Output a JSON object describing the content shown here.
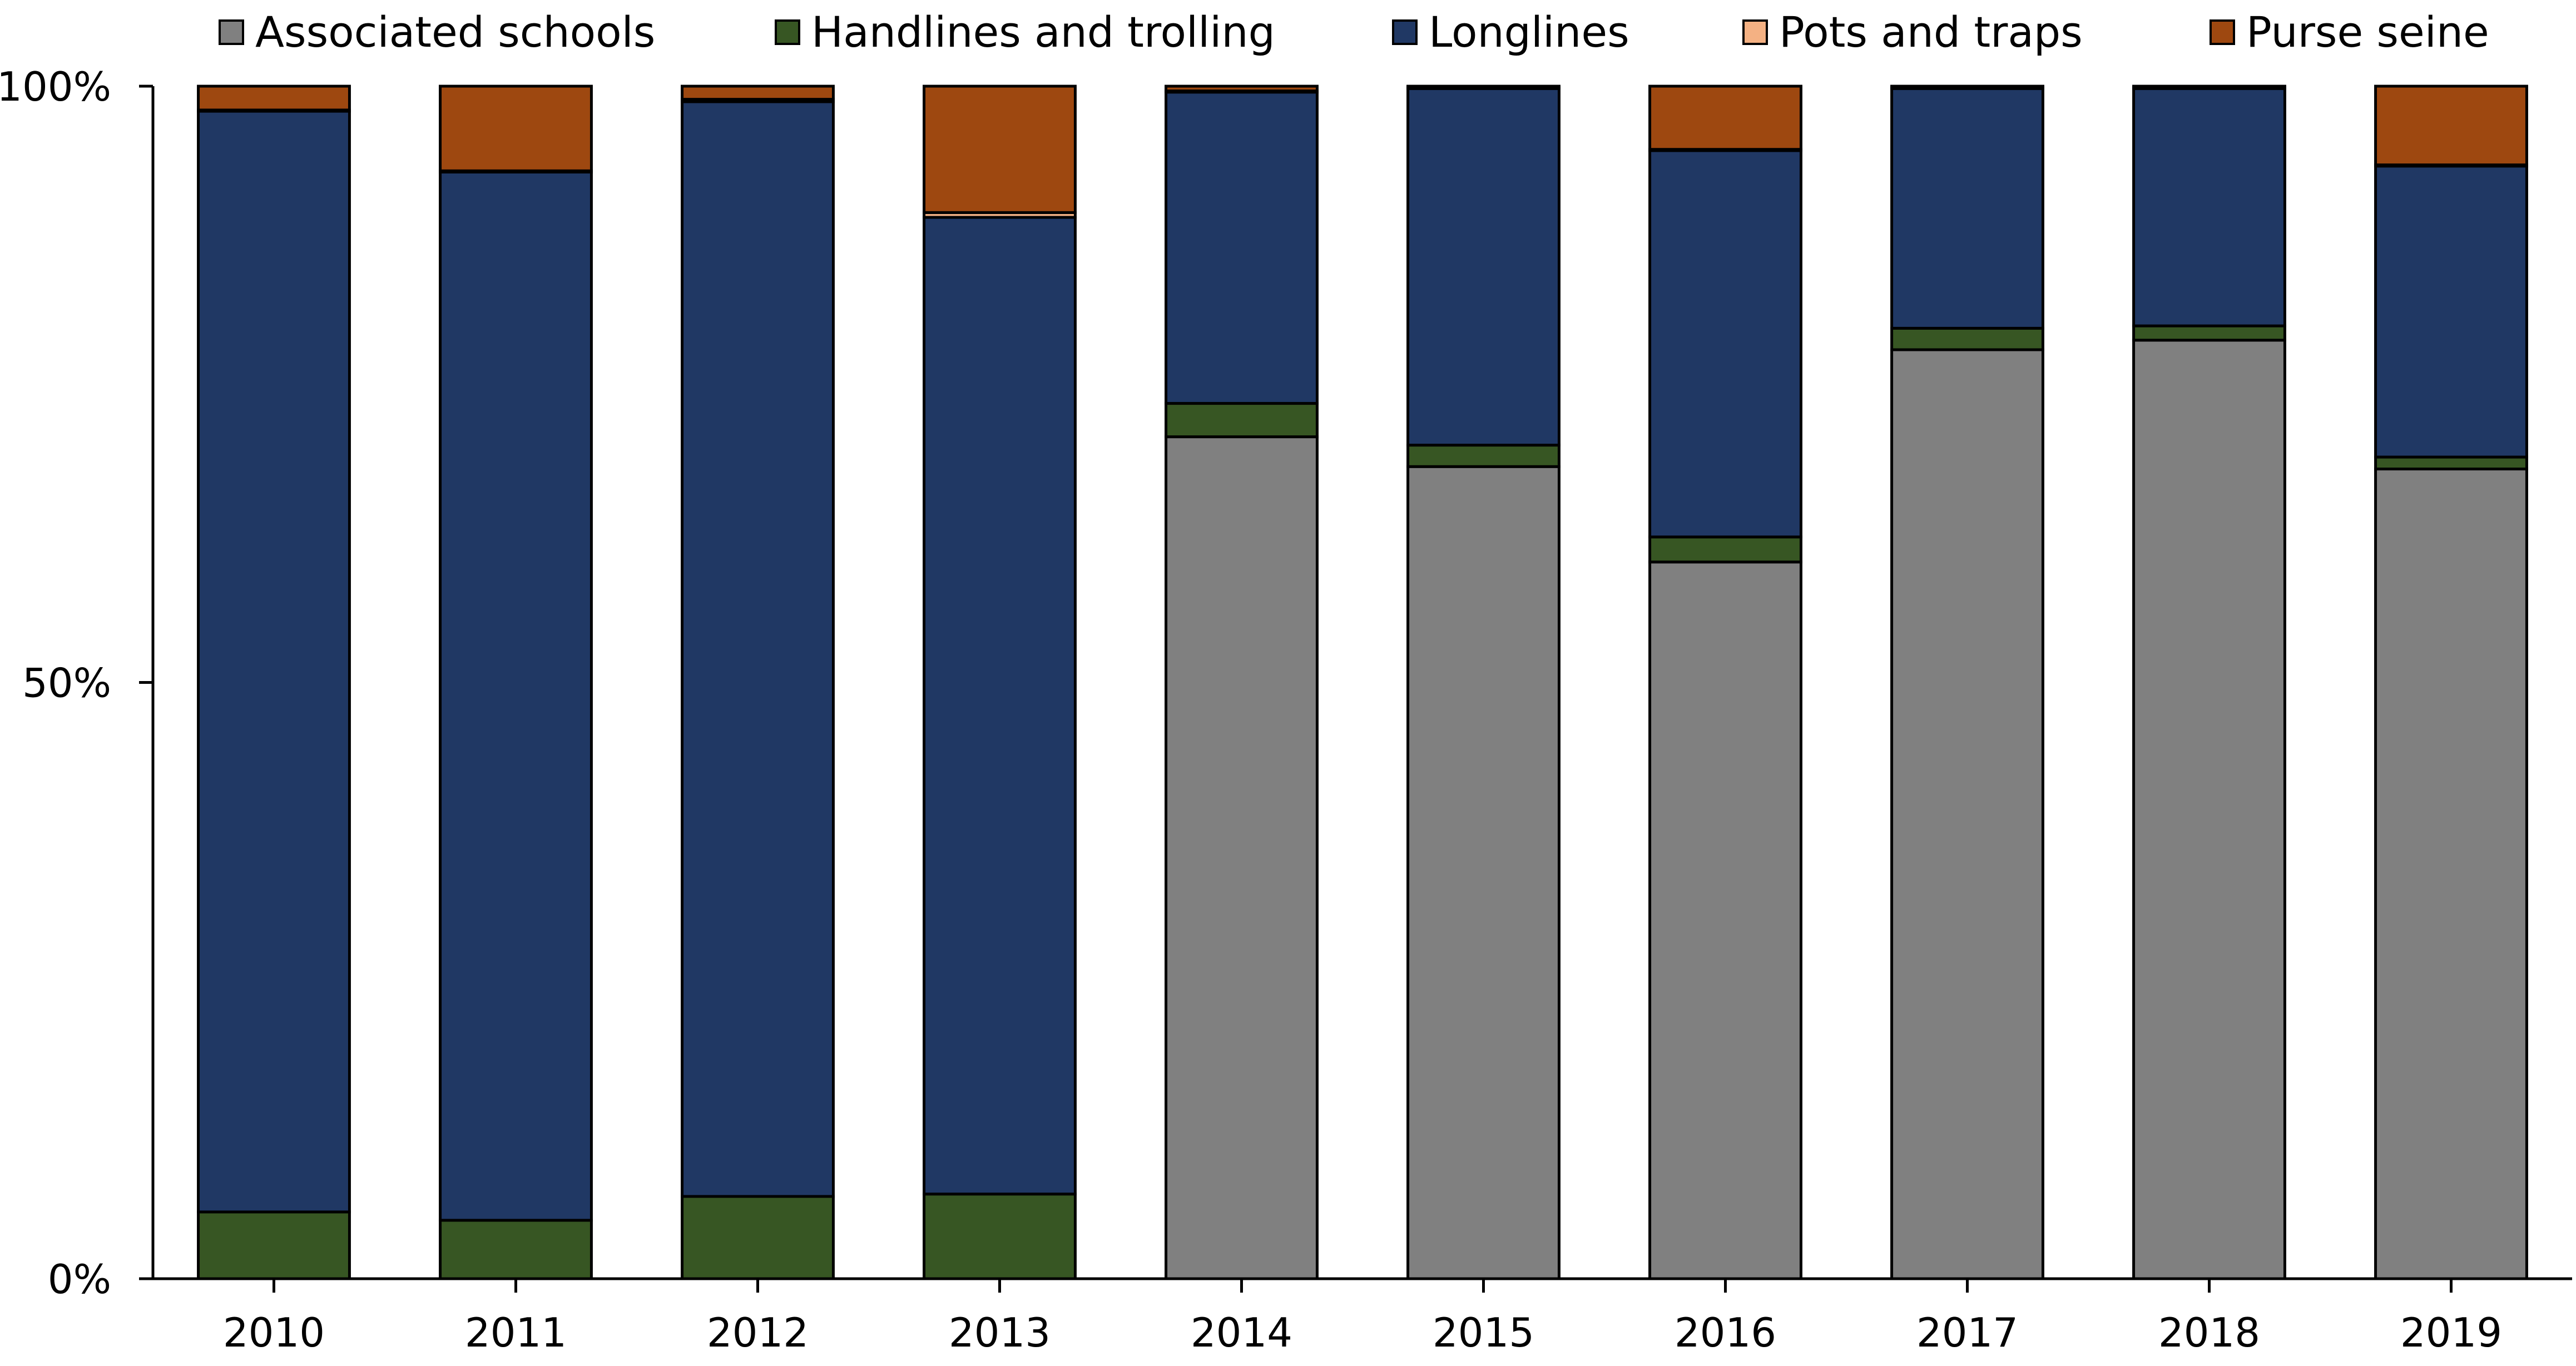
{
  "chart_data": {
    "type": "bar",
    "stacked": true,
    "normalized_percent": true,
    "categories": [
      "2010",
      "2011",
      "2012",
      "2013",
      "2014",
      "2015",
      "2016",
      "2017",
      "2018",
      "2019"
    ],
    "series": [
      {
        "name": "Associated schools",
        "color": "#808080",
        "values": [
          0,
          0,
          0,
          0,
          70.6,
          68.1,
          60.1,
          77.9,
          78.7,
          67.9
        ]
      },
      {
        "name": "Handlines and trolling",
        "color": "#375623",
        "values": [
          5.6,
          4.9,
          6.9,
          7.1,
          2.8,
          1.8,
          2.1,
          1.8,
          1.2,
          1.0
        ]
      },
      {
        "name": "Longlines",
        "color": "#203864",
        "values": [
          92.3,
          87.9,
          91.8,
          81.9,
          26.1,
          29.9,
          32.4,
          20.1,
          19.9,
          24.4
        ]
      },
      {
        "name": "Pots and traps",
        "color": "#F4B183",
        "values": [
          0.1,
          0.1,
          0.2,
          0.4,
          0.1,
          0.1,
          0.1,
          0.1,
          0.1,
          0.1
        ]
      },
      {
        "name": "Purse seine",
        "color": "#9E4810",
        "values": [
          2.0,
          7.1,
          1.1,
          10.6,
          0.4,
          0.1,
          5.3,
          0.1,
          0.1,
          6.6
        ]
      }
    ],
    "title": "",
    "xlabel": "",
    "ylabel": "",
    "ylim": [
      0,
      100
    ],
    "yticks": [
      0,
      50,
      100
    ],
    "ytick_labels": [
      "0%",
      "50%",
      "100%"
    ],
    "grid": false,
    "legend_position": "top"
  }
}
